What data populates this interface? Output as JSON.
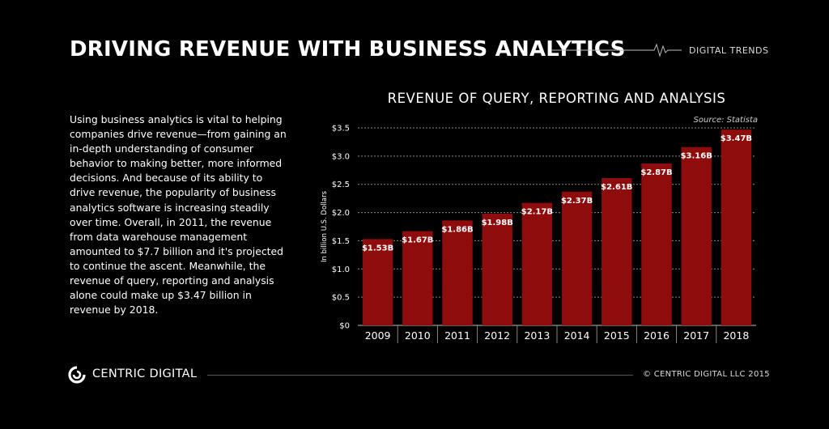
{
  "header": {
    "title": "DRIVING REVENUE WITH BUSINESS ANALYTICS",
    "tag": "DIGITAL TRENDS"
  },
  "body_text": "Using business analytics is vital to helping companies drive revenue—from gaining an in-depth understanding of consumer behavior to making better, more informed decisions. And because of its ability to drive revenue, the popularity of business analytics software is increasing steadily over time. Overall, in 2011, the revenue from data warehouse management amounted to $7.7 billion and it's projected to continue the ascent. Meanwhile, the revenue of query, reporting and analysis alone could make up $3.47 billion in revenue by 2018.",
  "chart_data": {
    "type": "bar",
    "title": "REVENUE OF QUERY, REPORTING AND ANALYSIS",
    "source": "Source:  Statista",
    "xlabel": "",
    "ylabel": "In billion U.S. Dollars",
    "categories": [
      "2009",
      "2010",
      "2011",
      "2012",
      "2013",
      "2014",
      "2015",
      "2016",
      "2017",
      "2018"
    ],
    "values": [
      1.53,
      1.67,
      1.86,
      1.98,
      2.17,
      2.37,
      2.61,
      2.87,
      3.16,
      3.47
    ],
    "data_labels": [
      "$1.53B",
      "$1.67B",
      "$1.86B",
      "$1.98B",
      "$2.17B",
      "$2.37B",
      "$2.61B",
      "$2.87B",
      "$3.16B",
      "$3.47B"
    ],
    "ylim": [
      0,
      3.5
    ],
    "yticks": [
      0,
      0.5,
      1.0,
      1.5,
      2.0,
      2.5,
      3.0,
      3.5
    ],
    "ytick_labels": [
      "$0",
      "$0.5",
      "$1.0",
      "$1.5",
      "$2.0",
      "$2.5",
      "$3.0",
      "$3.5"
    ],
    "grid": true,
    "bar_color": "#8f0c0c"
  },
  "footer": {
    "brand": "CENTRIC DIGITAL",
    "copyright": "© CENTRIC DIGITAL LLC 2015"
  }
}
